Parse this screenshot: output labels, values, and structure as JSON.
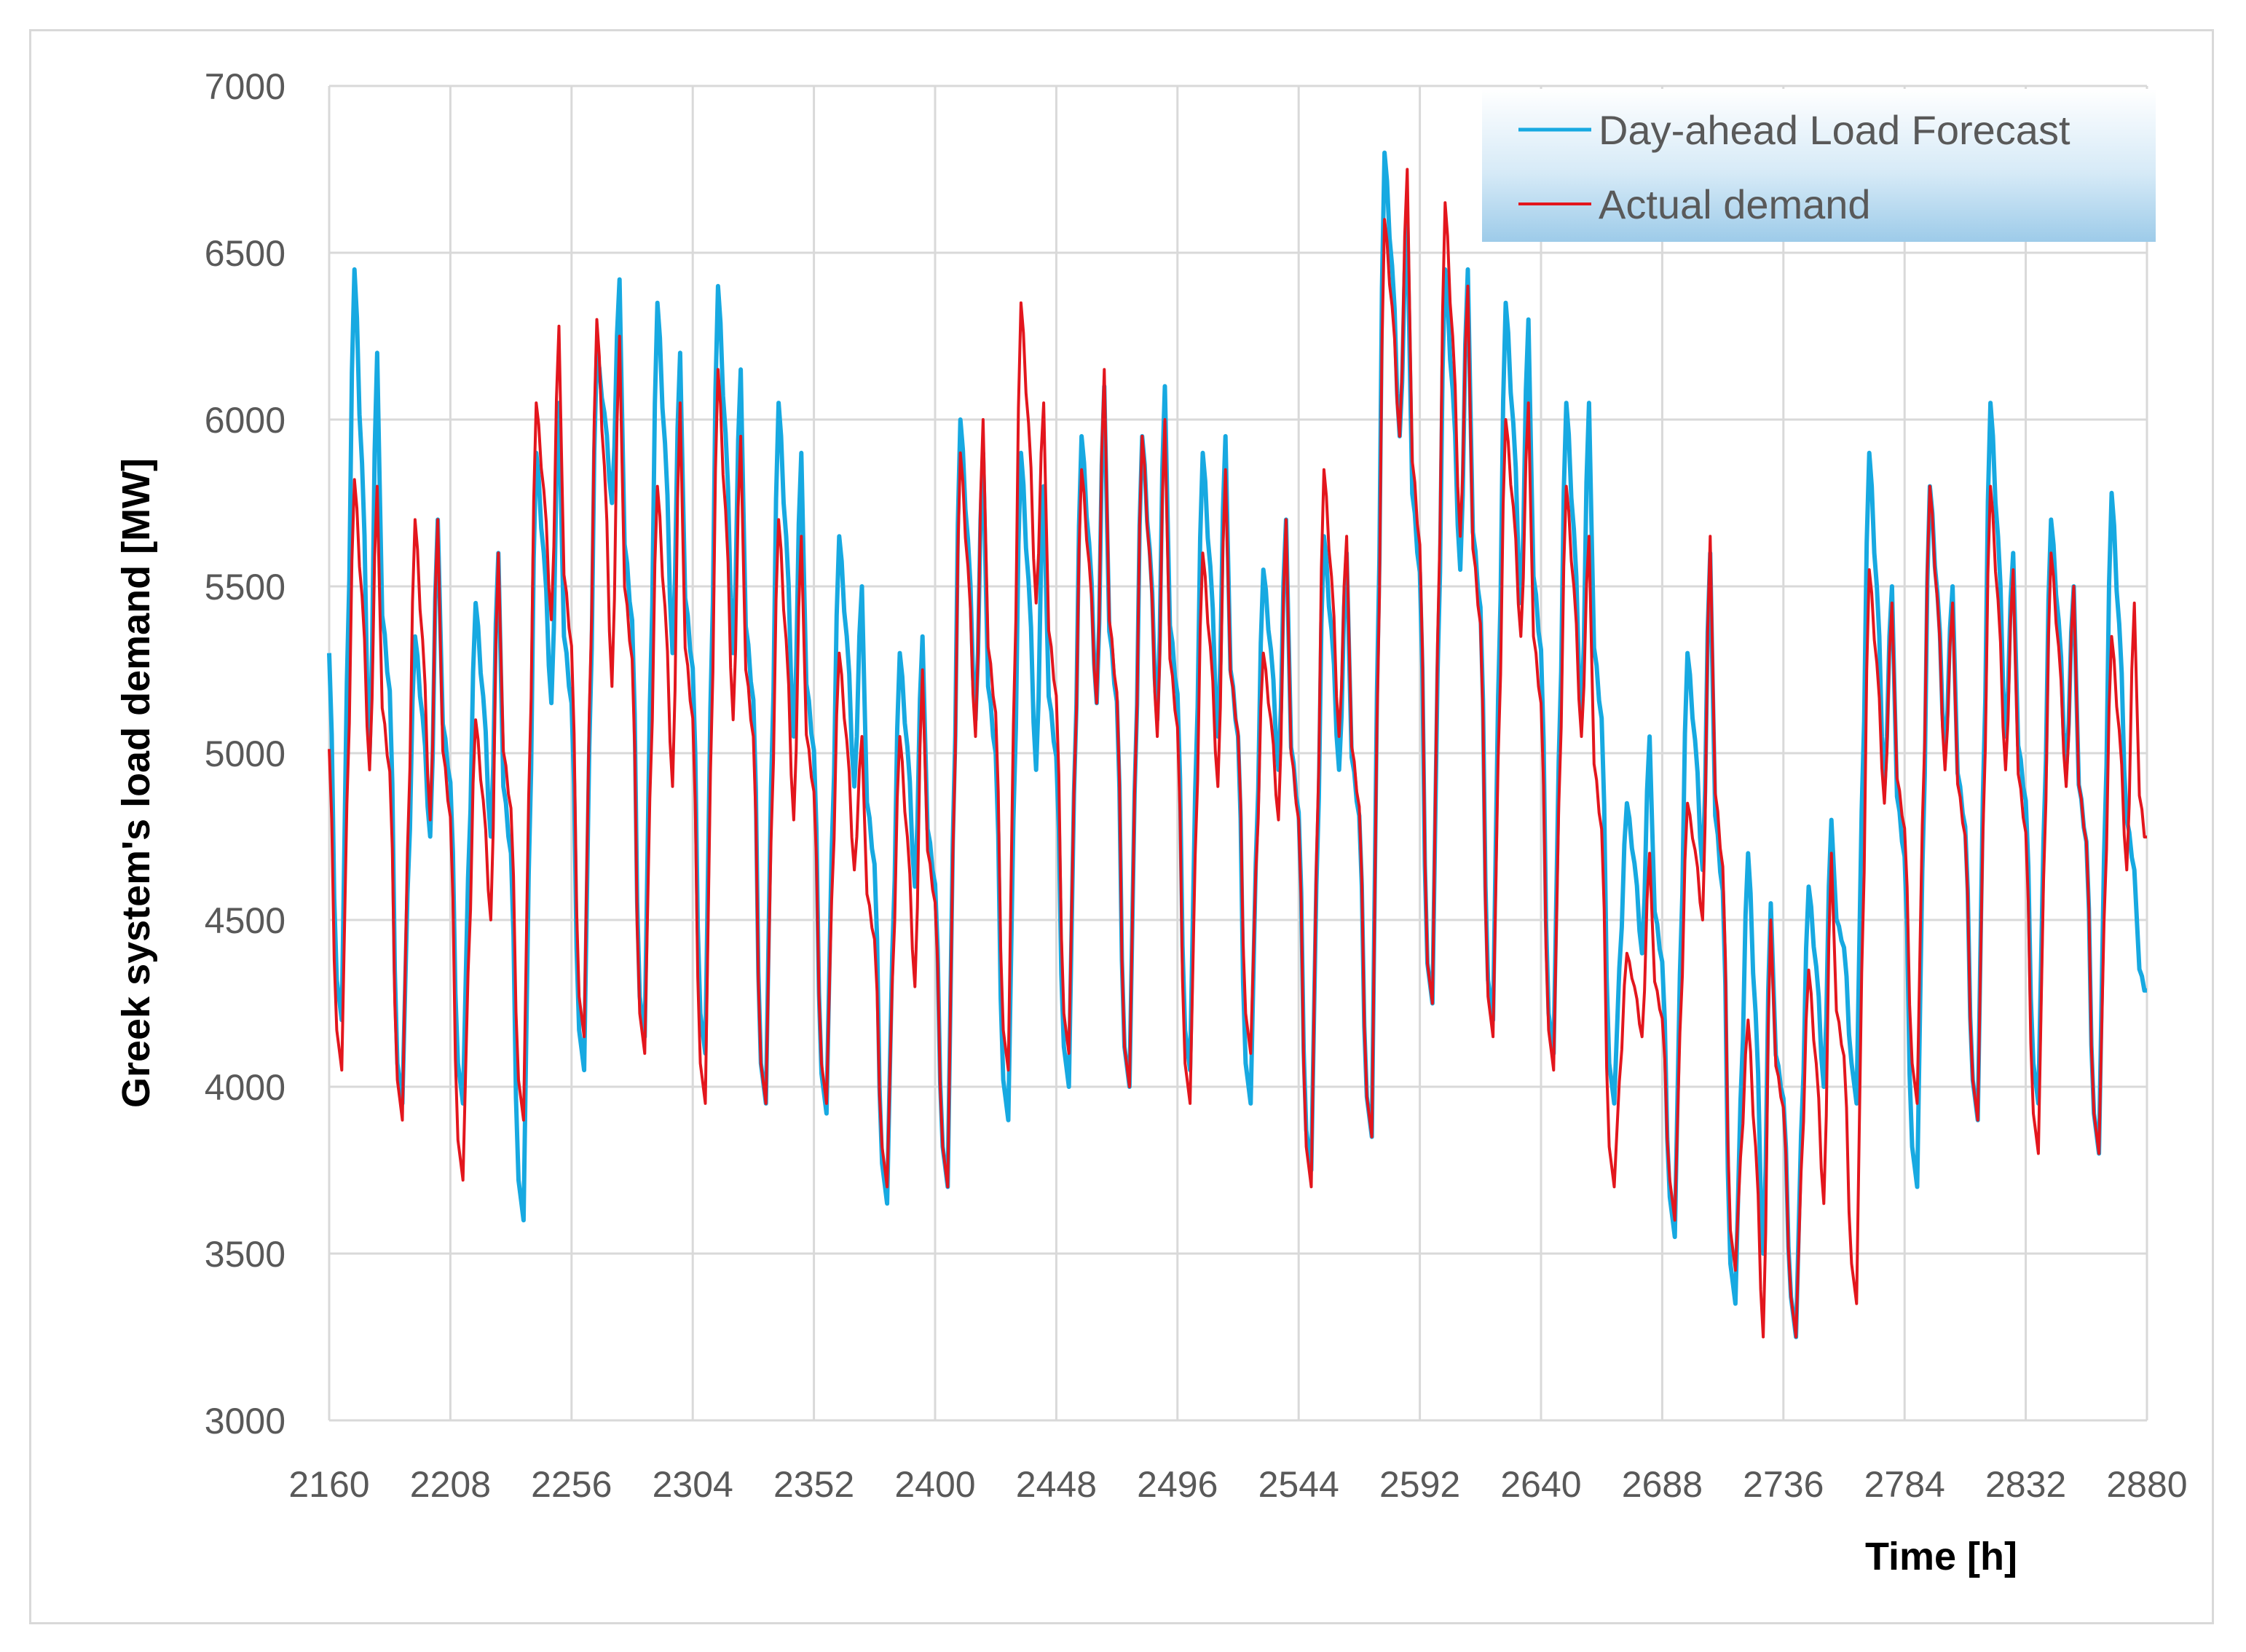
{
  "chart_data": {
    "type": "line",
    "title": "",
    "xlabel": "Time [h]",
    "ylabel": "Greek system's load demand [MW]",
    "xlim": [
      2160,
      2880
    ],
    "ylim": [
      3000,
      7000
    ],
    "xticks": [
      2160,
      2208,
      2256,
      2304,
      2352,
      2400,
      2448,
      2496,
      2544,
      2592,
      2640,
      2688,
      2736,
      2784,
      2832,
      2880
    ],
    "yticks": [
      3000,
      3500,
      4000,
      4500,
      5000,
      5500,
      6000,
      6500,
      7000
    ],
    "grid": true,
    "legend": "top-right",
    "days": [
      2160,
      2184,
      2208,
      2232,
      2256,
      2280,
      2304,
      2328,
      2352,
      2376,
      2400,
      2424,
      2448,
      2472,
      2496,
      2520,
      2544,
      2568,
      2592,
      2616,
      2640,
      2664,
      2688,
      2712,
      2736,
      2760,
      2784,
      2808,
      2832,
      2856
    ],
    "series": [
      {
        "name": "Day-ahead Load Forecast",
        "color": "#17a9e1",
        "daily": [
          {
            "min": 4200,
            "morning": 6450,
            "dip": 5000,
            "evening": 6200
          },
          {
            "min": 3950,
            "morning": 5350,
            "dip": 4750,
            "evening": 5700
          },
          {
            "min": 3950,
            "morning": 5450,
            "dip": 4750,
            "evening": 5600
          },
          {
            "min": 3600,
            "morning": 5900,
            "dip": 5150,
            "evening": 6050
          },
          {
            "min": 4050,
            "morning": 6200,
            "dip": 5750,
            "evening": 6420
          },
          {
            "min": 4150,
            "morning": 6350,
            "dip": 5300,
            "evening": 6200
          },
          {
            "min": 4100,
            "morning": 6400,
            "dip": 5300,
            "evening": 6150
          },
          {
            "min": 3950,
            "morning": 6050,
            "dip": 5050,
            "evening": 5900
          },
          {
            "min": 3920,
            "morning": 5650,
            "dip": 4900,
            "evening": 5500
          },
          {
            "min": 3650,
            "morning": 5300,
            "dip": 4600,
            "evening": 5350
          },
          {
            "min": 3700,
            "morning": 6000,
            "dip": 5100,
            "evening": 5900
          },
          {
            "min": 3900,
            "morning": 5900,
            "dip": 4950,
            "evening": 5800
          },
          {
            "min": 4000,
            "morning": 5950,
            "dip": 5150,
            "evening": 6100
          },
          {
            "min": 4000,
            "morning": 5950,
            "dip": 5100,
            "evening": 6100
          },
          {
            "min": 4050,
            "morning": 5900,
            "dip": 5050,
            "evening": 5950
          },
          {
            "min": 3950,
            "morning": 5550,
            "dip": 4950,
            "evening": 5700
          },
          {
            "min": 3750,
            "morning": 5650,
            "dip": 4950,
            "evening": 5600
          },
          {
            "min": 3850,
            "morning": 6800,
            "dip": 5950,
            "evening": 6600
          },
          {
            "min": 4250,
            "morning": 6450,
            "dip": 5550,
            "evening": 6450
          },
          {
            "min": 4200,
            "morning": 6350,
            "dip": 5450,
            "evening": 6300
          },
          {
            "min": 4100,
            "morning": 6050,
            "dip": 5100,
            "evening": 6050
          },
          {
            "min": 3950,
            "morning": 4850,
            "dip": 4400,
            "evening": 5050
          },
          {
            "min": 3550,
            "morning": 5300,
            "dip": 4650,
            "evening": 5600
          },
          {
            "min": 3350,
            "morning": 4700,
            "dip": 3500,
            "evening": 4550
          },
          {
            "min": 3250,
            "morning": 4600,
            "dip": 4000,
            "evening": 4800
          },
          {
            "min": 3950,
            "morning": 5900,
            "dip": 4900,
            "evening": 5500
          },
          {
            "min": 3700,
            "morning": 5800,
            "dip": 5000,
            "evening": 5500
          },
          {
            "min": 3900,
            "morning": 6050,
            "dip": 5050,
            "evening": 5600
          },
          {
            "min": 3950,
            "morning": 5700,
            "dip": 4950,
            "evening": 5500
          },
          {
            "min": 3800,
            "morning": 5780,
            "dip": 4800,
            "evening": 4650
          }
        ]
      },
      {
        "name": "Actual demand",
        "color": "#e3161d",
        "daily": [
          {
            "min": 4050,
            "morning": 5820,
            "dip": 4950,
            "evening": 5800
          },
          {
            "min": 3900,
            "morning": 5700,
            "dip": 4800,
            "evening": 5700
          },
          {
            "min": 3720,
            "morning": 5100,
            "dip": 4500,
            "evening": 5600
          },
          {
            "min": 3900,
            "morning": 6050,
            "dip": 5400,
            "evening": 6280
          },
          {
            "min": 4150,
            "morning": 6300,
            "dip": 5200,
            "evening": 6250
          },
          {
            "min": 4100,
            "morning": 5800,
            "dip": 4900,
            "evening": 6050
          },
          {
            "min": 3950,
            "morning": 6150,
            "dip": 5100,
            "evening": 5950
          },
          {
            "min": 3950,
            "morning": 5700,
            "dip": 4800,
            "evening": 5650
          },
          {
            "min": 3950,
            "morning": 5300,
            "dip": 4650,
            "evening": 5050
          },
          {
            "min": 3700,
            "morning": 5050,
            "dip": 4300,
            "evening": 5250
          },
          {
            "min": 3700,
            "morning": 5900,
            "dip": 5050,
            "evening": 6000
          },
          {
            "min": 4050,
            "morning": 6350,
            "dip": 5450,
            "evening": 6050
          },
          {
            "min": 4100,
            "morning": 5850,
            "dip": 5150,
            "evening": 6150
          },
          {
            "min": 4000,
            "morning": 5950,
            "dip": 5050,
            "evening": 6000
          },
          {
            "min": 3950,
            "morning": 5600,
            "dip": 4900,
            "evening": 5850
          },
          {
            "min": 4100,
            "morning": 5300,
            "dip": 4800,
            "evening": 5700
          },
          {
            "min": 3700,
            "morning": 5850,
            "dip": 5050,
            "evening": 5650
          },
          {
            "min": 3850,
            "morning": 6600,
            "dip": 5950,
            "evening": 6750
          },
          {
            "min": 4250,
            "morning": 6650,
            "dip": 5650,
            "evening": 6400
          },
          {
            "min": 4150,
            "morning": 6000,
            "dip": 5350,
            "evening": 6050
          },
          {
            "min": 4050,
            "morning": 5800,
            "dip": 5050,
            "evening": 5650
          },
          {
            "min": 3700,
            "morning": 4400,
            "dip": 4150,
            "evening": 4700
          },
          {
            "min": 3600,
            "morning": 4850,
            "dip": 4500,
            "evening": 5650
          },
          {
            "min": 3450,
            "morning": 4200,
            "dip": 3250,
            "evening": 4500
          },
          {
            "min": 3250,
            "morning": 4350,
            "dip": 3650,
            "evening": 4700
          },
          {
            "min": 3350,
            "morning": 5550,
            "dip": 4850,
            "evening": 5450
          },
          {
            "min": 3950,
            "morning": 5800,
            "dip": 4950,
            "evening": 5450
          },
          {
            "min": 3900,
            "morning": 5800,
            "dip": 4950,
            "evening": 5550
          },
          {
            "min": 3800,
            "morning": 5600,
            "dip": 4900,
            "evening": 5500
          },
          {
            "min": 3800,
            "morning": 5350,
            "dip": 4650,
            "evening": 5450
          }
        ]
      }
    ]
  }
}
